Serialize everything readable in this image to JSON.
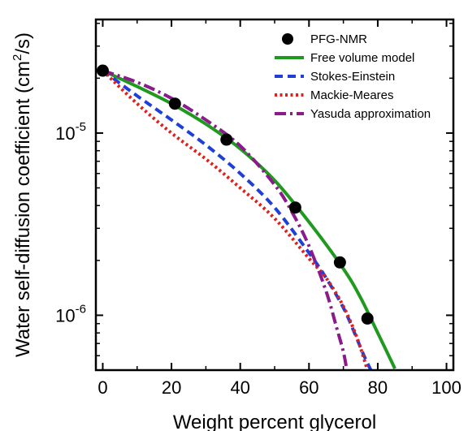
{
  "chart_data": {
    "type": "line",
    "title": "",
    "xlabel": "Weight percent glycerol",
    "ylabel": {
      "prefix": "Water self-diffusion coefficient (cm",
      "superscript": "2",
      "suffix": "/s)"
    },
    "xlim": [
      -2,
      102
    ],
    "ylim": [
      5e-07,
      4.2e-05
    ],
    "yscale": "log",
    "x_ticks": [
      {
        "value": 0,
        "label": "0"
      },
      {
        "value": 20,
        "label": "20"
      },
      {
        "value": 40,
        "label": "40"
      },
      {
        "value": 60,
        "label": "60"
      },
      {
        "value": 80,
        "label": "80"
      },
      {
        "value": 100,
        "label": "100"
      }
    ],
    "y_ticks": [
      {
        "value": 1e-05,
        "base": "10",
        "exponent": "-5"
      },
      {
        "value": 1e-06,
        "base": "10",
        "exponent": "-6"
      }
    ],
    "grid": false,
    "legend_position": "top-right",
    "series": [
      {
        "name": "PFG-NMR",
        "kind": "scatter",
        "color": "#000000",
        "x": [
          0,
          21,
          36,
          56,
          69,
          77
        ],
        "y": [
          2.2e-05,
          1.45e-05,
          9.2e-06,
          3.9e-06,
          1.95e-06,
          9.6e-07
        ]
      },
      {
        "name": "Free volume model",
        "kind": "line",
        "style": "solid",
        "color": "#1f9a1f",
        "x": [
          0,
          10,
          20,
          30,
          40,
          50,
          60,
          70,
          75,
          80,
          85
        ],
        "y": [
          2.2e-05,
          1.8e-05,
          1.45e-05,
          1.12e-05,
          8.2e-06,
          5.5e-06,
          3.25e-06,
          1.8e-06,
          1.25e-06,
          8e-07,
          5.1e-07
        ]
      },
      {
        "name": "Stokes-Einstein",
        "kind": "line",
        "style": "dashed",
        "color": "#1f3fd6",
        "x": [
          0,
          10,
          20,
          30,
          40,
          50,
          60,
          65,
          70,
          73,
          76,
          78
        ],
        "y": [
          2.2e-05,
          1.6e-05,
          1.18e-05,
          8.6e-06,
          6e-06,
          3.9e-06,
          2.2e-06,
          1.6e-06,
          1.1e-06,
          8.2e-07,
          6e-07,
          5e-07
        ]
      },
      {
        "name": "Mackie-Meares",
        "kind": "line",
        "style": "dotted",
        "color": "#e0201c",
        "x": [
          0,
          10,
          20,
          30,
          40,
          50,
          60,
          65,
          70,
          74,
          77
        ],
        "y": [
          2.2e-05,
          1.45e-05,
          1e-05,
          7.2e-06,
          5e-06,
          3.4e-06,
          2.05e-06,
          1.6e-06,
          1.12e-06,
          7.5e-07,
          5e-07
        ]
      },
      {
        "name": "Yasuda approximation",
        "kind": "line",
        "style": "dashdot",
        "color": "#8b1a8b",
        "x": [
          0,
          10,
          20,
          30,
          40,
          50,
          55,
          60,
          65,
          68,
          70,
          71
        ],
        "y": [
          2.2e-05,
          1.9e-05,
          1.55e-05,
          1.18e-05,
          8.5e-06,
          5.2e-06,
          3.7e-06,
          2.4e-06,
          1.35e-06,
          8.6e-07,
          6.3e-07,
          5e-07
        ]
      }
    ]
  }
}
